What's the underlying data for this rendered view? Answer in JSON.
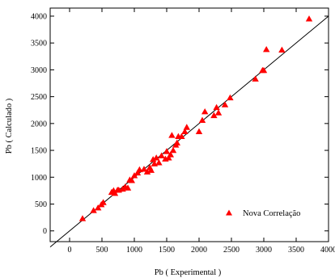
{
  "chart_data": {
    "type": "scatter",
    "xlabel": "Pb ( Experimental )",
    "ylabel": "Pb ( Calculado )",
    "xlim": [
      -300,
      4000
    ],
    "ylim": [
      -200,
      4150
    ],
    "x_ticks": [
      0,
      500,
      1000,
      1500,
      2000,
      2500,
      3000,
      3500,
      4000
    ],
    "y_ticks": [
      0,
      500,
      1000,
      1500,
      2000,
      2500,
      3000,
      3500,
      4000
    ],
    "grid": false,
    "legend_position": "bottom-right",
    "series": [
      {
        "name": "Nova Correlação",
        "color": "#ff0000",
        "marker": "triangle-up",
        "points": [
          [
            200,
            230
          ],
          [
            370,
            380
          ],
          [
            440,
            430
          ],
          [
            490,
            490
          ],
          [
            520,
            530
          ],
          [
            650,
            720
          ],
          [
            680,
            750
          ],
          [
            700,
            700
          ],
          [
            740,
            760
          ],
          [
            760,
            760
          ],
          [
            820,
            780
          ],
          [
            860,
            820
          ],
          [
            900,
            800
          ],
          [
            930,
            950
          ],
          [
            960,
            940
          ],
          [
            1000,
            1030
          ],
          [
            1050,
            1080
          ],
          [
            1080,
            1140
          ],
          [
            1150,
            1150
          ],
          [
            1200,
            1100
          ],
          [
            1240,
            1180
          ],
          [
            1260,
            1130
          ],
          [
            1290,
            1330
          ],
          [
            1310,
            1250
          ],
          [
            1340,
            1360
          ],
          [
            1380,
            1270
          ],
          [
            1420,
            1400
          ],
          [
            1480,
            1340
          ],
          [
            1500,
            1480
          ],
          [
            1530,
            1360
          ],
          [
            1560,
            1420
          ],
          [
            1580,
            1780
          ],
          [
            1600,
            1500
          ],
          [
            1640,
            1600
          ],
          [
            1660,
            1640
          ],
          [
            1680,
            1760
          ],
          [
            1730,
            1760
          ],
          [
            1780,
            1850
          ],
          [
            1810,
            1930
          ],
          [
            2000,
            1850
          ],
          [
            2050,
            2060
          ],
          [
            2090,
            2220
          ],
          [
            2230,
            2150
          ],
          [
            2270,
            2300
          ],
          [
            2300,
            2200
          ],
          [
            2400,
            2350
          ],
          [
            2480,
            2480
          ],
          [
            2870,
            2830
          ],
          [
            2980,
            2990
          ],
          [
            3000,
            2990
          ],
          [
            3040,
            3380
          ],
          [
            3280,
            3370
          ],
          [
            3700,
            3950
          ]
        ]
      }
    ],
    "reference_line": {
      "from": [
        -300,
        -300
      ],
      "to": [
        4000,
        4000
      ]
    }
  }
}
